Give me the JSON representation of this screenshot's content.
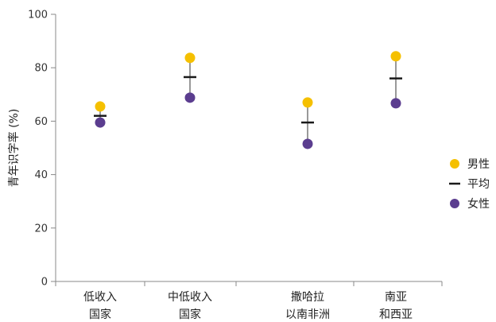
{
  "chart_data": {
    "type": "scatter",
    "ylabel": "青年识字率 (%)",
    "ylim": [
      0,
      100
    ],
    "yticks": [
      "0",
      "20",
      "40",
      "60",
      "80",
      "100"
    ],
    "categories": [
      {
        "line1": "低收入",
        "line2": "国家"
      },
      {
        "line1": "中低收入",
        "line2": "国家"
      },
      {
        "line1": "撒哈拉",
        "line2": "以南非洲"
      },
      {
        "line1": "南亚",
        "line2": "和西亚"
      }
    ],
    "series": [
      {
        "name": "男性",
        "color": "#F5C000",
        "marker": "circle",
        "values": [
          65.5,
          83.7,
          67.0,
          84.3
        ]
      },
      {
        "name": "平均",
        "color": "#1A1A1A",
        "marker": "dash",
        "values": [
          62.0,
          76.5,
          59.5,
          76.0
        ]
      },
      {
        "name": "女性",
        "color": "#5B3D8F",
        "marker": "circle",
        "values": [
          59.5,
          68.8,
          51.5,
          66.7
        ]
      }
    ],
    "legend_position": "right",
    "range_line_color": "#999999"
  }
}
